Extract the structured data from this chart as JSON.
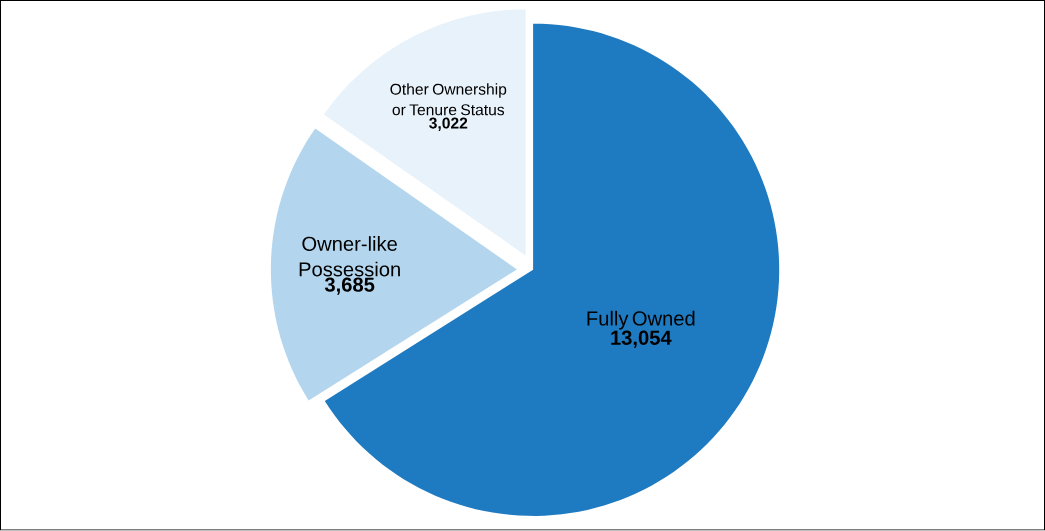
{
  "chart_data": {
    "type": "pie",
    "categories": [
      "Fully Owned",
      "Owner-like Possession",
      "Other Ownership or Tenure Status"
    ],
    "values": [
      13054,
      3685,
      3022
    ],
    "value_labels": [
      "13,054",
      "3,685",
      "3,022"
    ],
    "colors": [
      "#1f7bc1",
      "#b3d6ee",
      "#e8f2fa"
    ]
  }
}
